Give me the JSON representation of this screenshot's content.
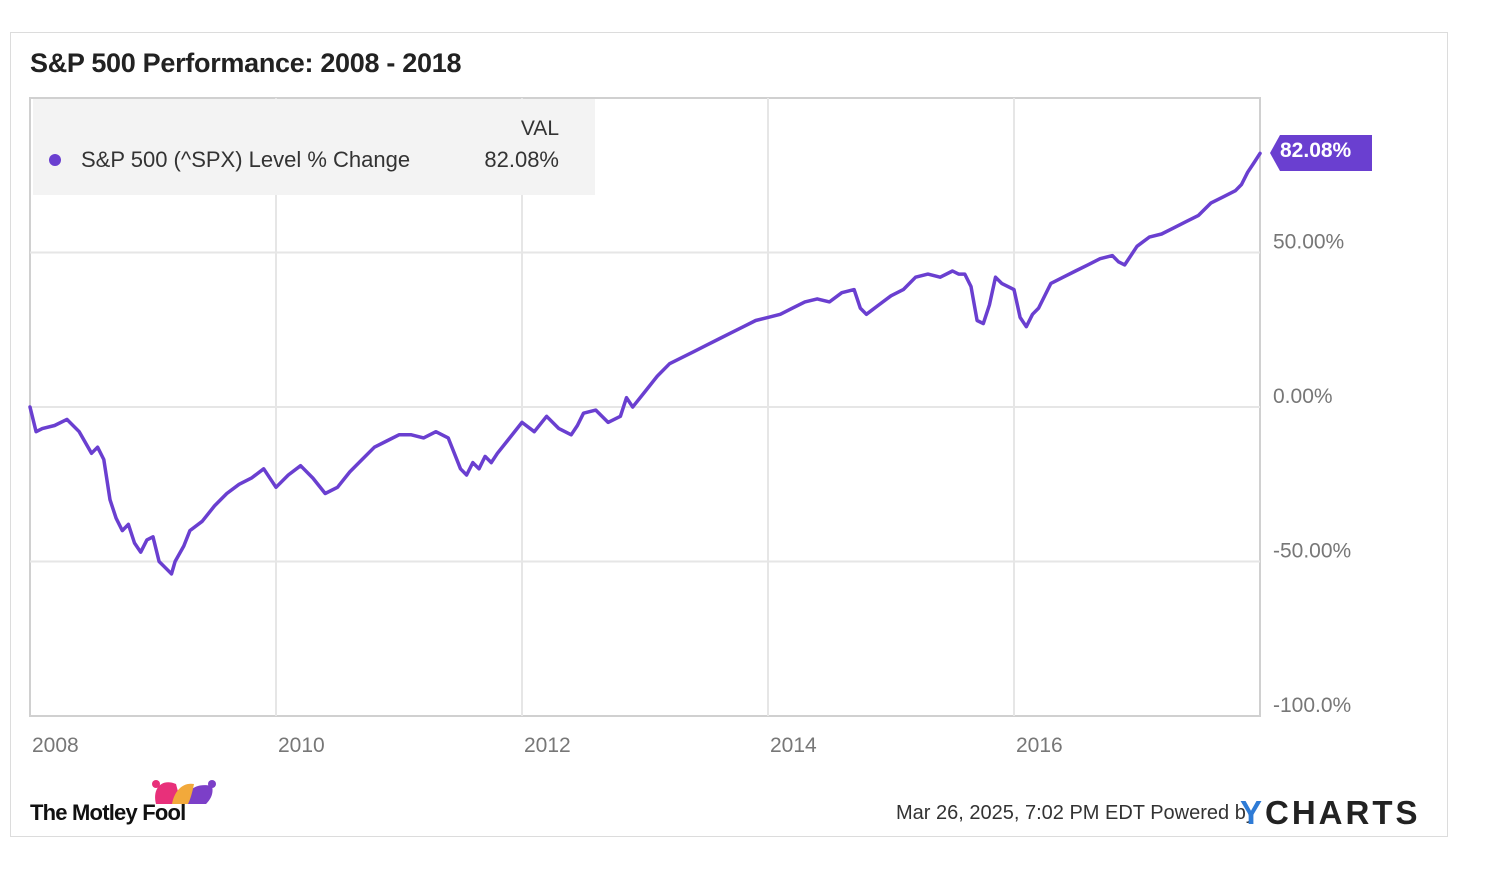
{
  "colors": {
    "line": "#6a3fd0",
    "grid": "#e6e6e6",
    "axis": "#d0d0d0"
  },
  "legend": {
    "header": "VAL",
    "series_name": "S&P 500 (^SPX) Level % Change",
    "value": "82.08%"
  },
  "end_label": "82.08%",
  "footer": {
    "timestamp": "Mar 26, 2025, 7:02 PM EDT",
    "powered_by": "Powered by",
    "brand_y": "Y",
    "brand_rest": "CHARTS"
  },
  "logo": {
    "text": "The Motley Fool"
  },
  "chart_data": {
    "type": "line",
    "title": "S&P 500 Performance: 2008 - 2018",
    "xlabel": "",
    "ylabel": "",
    "ylim": [
      -100,
      100
    ],
    "xlim": [
      2008.0,
      2018.0
    ],
    "yticks": [
      50,
      0,
      -50,
      -100
    ],
    "ytick_labels": [
      "50.00%",
      "0.00%",
      "-50.00%",
      "-100.0%"
    ],
    "xticks": [
      2008,
      2010,
      2012,
      2014,
      2016
    ],
    "xtick_labels": [
      "2008",
      "2010",
      "2012",
      "2014",
      "2016"
    ],
    "grid": true,
    "legend_position": "top-left",
    "series": [
      {
        "name": "S&P 500 (^SPX) Level % Change",
        "x": [
          2008.0,
          2008.05,
          2008.1,
          2008.2,
          2008.3,
          2008.4,
          2008.5,
          2008.55,
          2008.6,
          2008.65,
          2008.7,
          2008.75,
          2008.8,
          2008.85,
          2008.9,
          2008.95,
          2009.0,
          2009.05,
          2009.1,
          2009.15,
          2009.18,
          2009.25,
          2009.3,
          2009.4,
          2009.5,
          2009.6,
          2009.7,
          2009.8,
          2009.9,
          2010.0,
          2010.1,
          2010.2,
          2010.3,
          2010.4,
          2010.5,
          2010.6,
          2010.7,
          2010.8,
          2010.9,
          2011.0,
          2011.1,
          2011.2,
          2011.3,
          2011.4,
          2011.5,
          2011.55,
          2011.6,
          2011.65,
          2011.7,
          2011.75,
          2011.8,
          2011.9,
          2012.0,
          2012.1,
          2012.2,
          2012.3,
          2012.4,
          2012.45,
          2012.5,
          2012.6,
          2012.7,
          2012.8,
          2012.85,
          2012.9,
          2013.0,
          2013.1,
          2013.2,
          2013.3,
          2013.4,
          2013.5,
          2013.6,
          2013.7,
          2013.8,
          2013.9,
          2014.0,
          2014.1,
          2014.2,
          2014.3,
          2014.4,
          2014.5,
          2014.6,
          2014.7,
          2014.75,
          2014.8,
          2014.9,
          2015.0,
          2015.1,
          2015.2,
          2015.3,
          2015.4,
          2015.5,
          2015.55,
          2015.6,
          2015.65,
          2015.7,
          2015.75,
          2015.8,
          2015.85,
          2015.9,
          2016.0,
          2016.05,
          2016.1,
          2016.15,
          2016.2,
          2016.3,
          2016.4,
          2016.5,
          2016.6,
          2016.7,
          2016.8,
          2016.85,
          2016.9,
          2017.0,
          2017.1,
          2017.2,
          2017.3,
          2017.4,
          2017.5,
          2017.6,
          2017.7,
          2017.8,
          2017.85,
          2017.9,
          2017.95,
          2018.0
        ],
        "values": [
          0,
          -8,
          -7,
          -6,
          -4,
          -8,
          -15,
          -13,
          -17,
          -30,
          -36,
          -40,
          -38,
          -44,
          -47,
          -43,
          -42,
          -50,
          -52,
          -54,
          -50,
          -45,
          -40,
          -37,
          -32,
          -28,
          -25,
          -23,
          -20,
          -26,
          -22,
          -19,
          -23,
          -28,
          -26,
          -21,
          -17,
          -13,
          -11,
          -9,
          -9,
          -10,
          -8,
          -10,
          -20,
          -22,
          -18,
          -20,
          -16,
          -18,
          -15,
          -10,
          -5,
          -8,
          -3,
          -7,
          -9,
          -6,
          -2,
          -1,
          -5,
          -3,
          3,
          0,
          5,
          10,
          14,
          16,
          18,
          20,
          22,
          24,
          26,
          28,
          29,
          30,
          32,
          34,
          35,
          34,
          37,
          38,
          32,
          30,
          33,
          36,
          38,
          42,
          43,
          42,
          44,
          43,
          43,
          39,
          28,
          27,
          33,
          42,
          40,
          38,
          29,
          26,
          30,
          32,
          40,
          42,
          44,
          46,
          48,
          49,
          47,
          46,
          52,
          55,
          56,
          58,
          60,
          62,
          66,
          68,
          70,
          72,
          76,
          79,
          82.08
        ]
      }
    ]
  }
}
